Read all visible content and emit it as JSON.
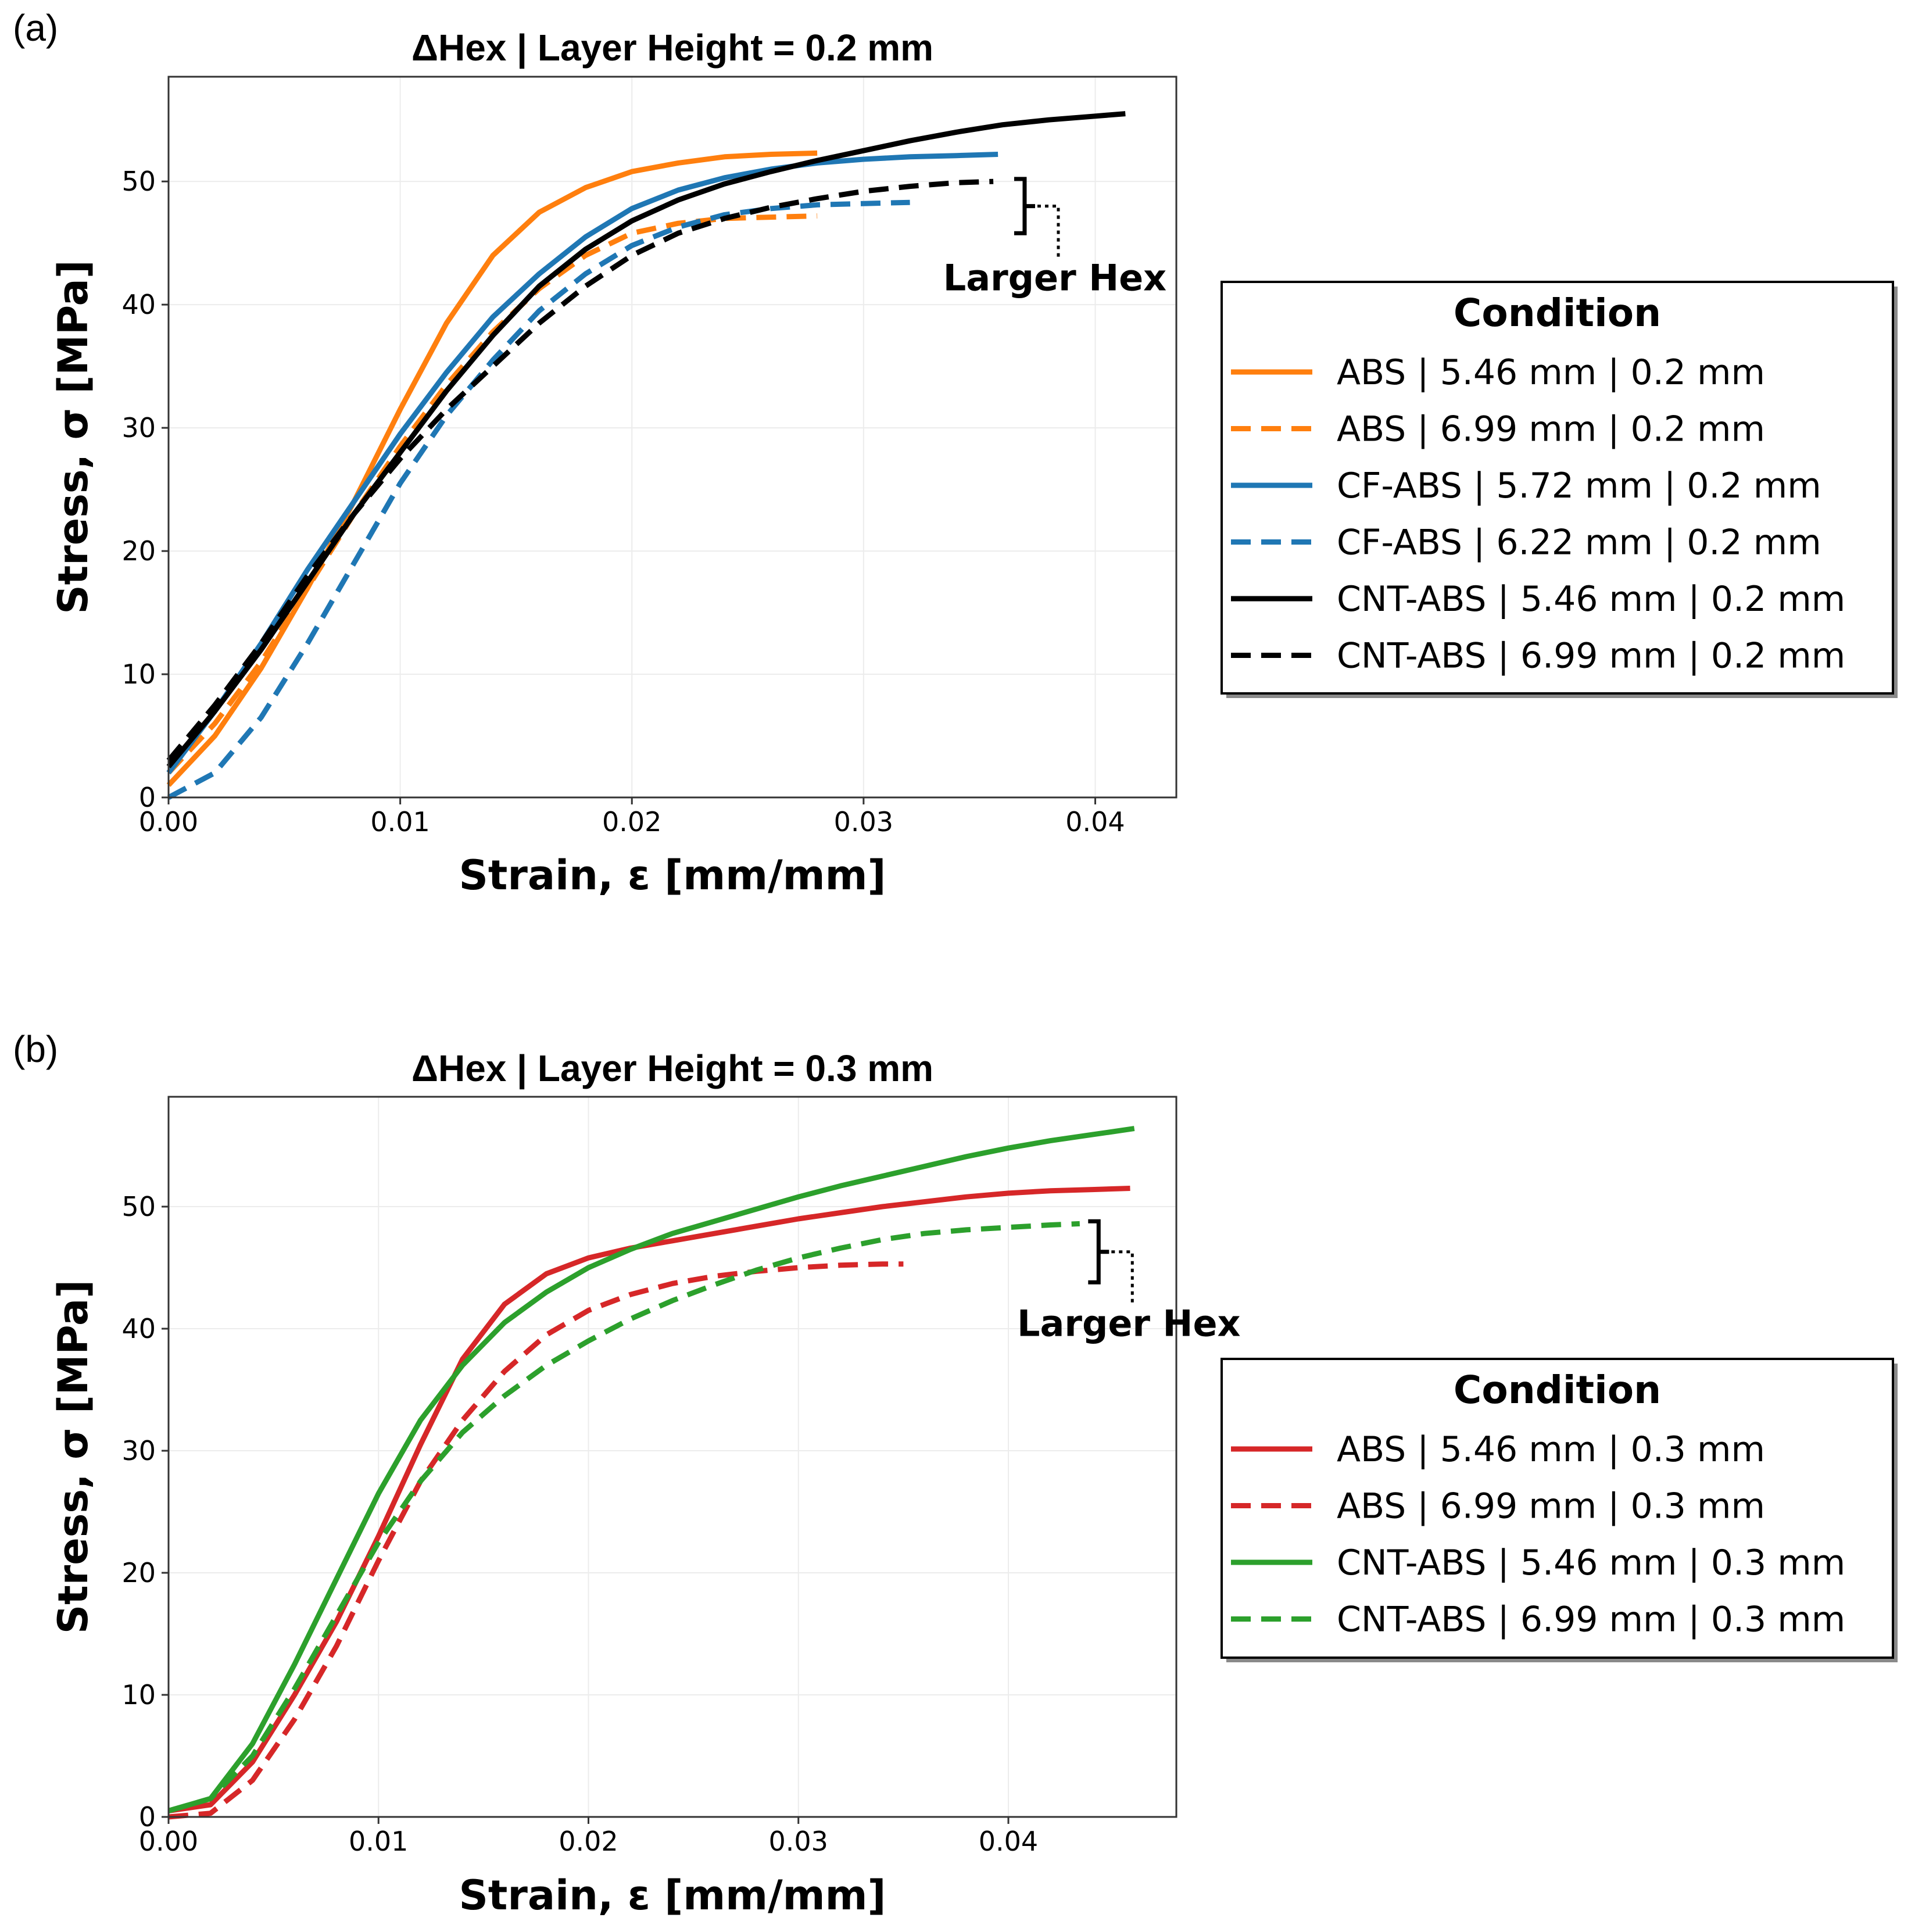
{
  "chart_data": [
    {
      "id": "a",
      "panel_label": "(a)",
      "type": "line",
      "title": "ΔHex | Layer Height = 0.2 mm",
      "xlabel": "Strain, ε [mm/mm]",
      "ylabel": "Stress, σ [MPa]",
      "xlim": [
        0.0,
        0.0435
      ],
      "ylim": [
        0,
        58.5
      ],
      "xticks": [
        0.0,
        0.01,
        0.02,
        0.03,
        0.04
      ],
      "xtick_labels": [
        "0.00",
        "0.01",
        "0.02",
        "0.03",
        "0.04"
      ],
      "yticks": [
        0,
        10,
        20,
        30,
        40,
        50
      ],
      "ytick_labels": [
        "0",
        "10",
        "20",
        "30",
        "40",
        "50"
      ],
      "grid": true,
      "annotation": {
        "text": "Larger Hex",
        "x": 0.0365,
        "y_top": 50.2,
        "y_bottom": 45.8
      },
      "legend": {
        "title": "Condition",
        "placement": "right"
      },
      "series": [
        {
          "name": "ABS | 5.46 mm | 0.2 mm",
          "color": "#ff7f0e",
          "dash": "solid",
          "x": [
            0,
            0.002,
            0.004,
            0.006,
            0.008,
            0.01,
            0.012,
            0.014,
            0.016,
            0.018,
            0.02,
            0.022,
            0.024,
            0.026,
            0.028
          ],
          "y": [
            1.0,
            5.0,
            10.5,
            17.0,
            24.0,
            31.5,
            38.5,
            44.0,
            47.5,
            49.5,
            50.8,
            51.5,
            52.0,
            52.2,
            52.3
          ]
        },
        {
          "name": "ABS | 6.99 mm | 0.2 mm",
          "color": "#ff7f0e",
          "dash": "dashed",
          "x": [
            0,
            0.002,
            0.004,
            0.006,
            0.008,
            0.01,
            0.012,
            0.014,
            0.016,
            0.018,
            0.02,
            0.022,
            0.024,
            0.026,
            0.028
          ],
          "y": [
            2.0,
            6.0,
            11.0,
            17.0,
            23.0,
            28.5,
            33.5,
            37.8,
            41.3,
            44.0,
            45.8,
            46.6,
            47.0,
            47.1,
            47.2
          ]
        },
        {
          "name": "CF-ABS | 5.72 mm | 0.2 mm",
          "color": "#1f77b4",
          "dash": "solid",
          "x": [
            0,
            0.002,
            0.004,
            0.006,
            0.008,
            0.01,
            0.012,
            0.014,
            0.016,
            0.018,
            0.02,
            0.022,
            0.024,
            0.026,
            0.028,
            0.03,
            0.032,
            0.034,
            0.0358
          ],
          "y": [
            2.0,
            7.0,
            12.5,
            18.5,
            24.0,
            29.5,
            34.5,
            39.0,
            42.5,
            45.5,
            47.8,
            49.3,
            50.3,
            51.0,
            51.5,
            51.8,
            52.0,
            52.1,
            52.2
          ]
        },
        {
          "name": "CF-ABS | 6.22 mm | 0.2 mm",
          "color": "#1f77b4",
          "dash": "dashed",
          "x": [
            0,
            0.002,
            0.004,
            0.006,
            0.008,
            0.01,
            0.012,
            0.014,
            0.016,
            0.018,
            0.02,
            0.022,
            0.024,
            0.026,
            0.028,
            0.03,
            0.032
          ],
          "y": [
            0.0,
            2.0,
            6.5,
            12.5,
            19.0,
            25.5,
            31.0,
            35.5,
            39.5,
            42.5,
            44.8,
            46.3,
            47.3,
            47.8,
            48.1,
            48.2,
            48.3
          ]
        },
        {
          "name": "CNT-ABS | 5.46 mm | 0.2 mm",
          "color": "#000000",
          "dash": "solid",
          "x": [
            0,
            0.002,
            0.004,
            0.006,
            0.008,
            0.01,
            0.012,
            0.014,
            0.016,
            0.018,
            0.02,
            0.022,
            0.024,
            0.026,
            0.028,
            0.03,
            0.032,
            0.034,
            0.036,
            0.038,
            0.04,
            0.0413
          ],
          "y": [
            2.5,
            7.0,
            12.0,
            17.5,
            23.0,
            28.0,
            33.0,
            37.5,
            41.5,
            44.5,
            46.8,
            48.5,
            49.8,
            50.8,
            51.7,
            52.5,
            53.3,
            54.0,
            54.6,
            55.0,
            55.3,
            55.5
          ]
        },
        {
          "name": "CNT-ABS | 6.99 mm | 0.2 mm",
          "color": "#000000",
          "dash": "dashed",
          "x": [
            0,
            0.002,
            0.004,
            0.006,
            0.008,
            0.01,
            0.012,
            0.014,
            0.016,
            0.018,
            0.02,
            0.022,
            0.024,
            0.026,
            0.028,
            0.03,
            0.032,
            0.034,
            0.0356
          ],
          "y": [
            3.0,
            7.5,
            12.5,
            18.0,
            23.0,
            27.5,
            31.5,
            35.0,
            38.5,
            41.5,
            44.0,
            45.8,
            47.0,
            47.9,
            48.6,
            49.2,
            49.6,
            49.9,
            50.0
          ]
        }
      ]
    },
    {
      "id": "b",
      "panel_label": "(b)",
      "type": "line",
      "title": "ΔHex | Layer Height = 0.3 mm",
      "xlabel": "Strain, ε [mm/mm]",
      "ylabel": "Stress, σ [MPa]",
      "xlim": [
        0.0,
        0.048
      ],
      "ylim": [
        0,
        59
      ],
      "xticks": [
        0.0,
        0.01,
        0.02,
        0.03,
        0.04
      ],
      "xtick_labels": [
        "0.00",
        "0.01",
        "0.02",
        "0.03",
        "0.04"
      ],
      "yticks": [
        0,
        10,
        20,
        30,
        40,
        50
      ],
      "ytick_labels": [
        "0",
        "10",
        "20",
        "30",
        "40",
        "50"
      ],
      "grid": true,
      "annotation": {
        "text": "Larger Hex",
        "x": 0.0438,
        "y_top": 48.8,
        "y_bottom": 43.8
      },
      "legend": {
        "title": "Condition",
        "placement": "right"
      },
      "series": [
        {
          "name": "ABS | 5.46 mm | 0.3 mm",
          "color": "#d62728",
          "dash": "solid",
          "x": [
            0,
            0.002,
            0.004,
            0.006,
            0.008,
            0.01,
            0.012,
            0.014,
            0.016,
            0.018,
            0.02,
            0.022,
            0.024,
            0.026,
            0.028,
            0.03,
            0.032,
            0.034,
            0.036,
            0.038,
            0.04,
            0.042,
            0.044,
            0.0458
          ],
          "y": [
            0.5,
            1.0,
            4.5,
            10.0,
            16.0,
            23.0,
            30.5,
            37.5,
            42.0,
            44.5,
            45.8,
            46.6,
            47.2,
            47.8,
            48.4,
            49.0,
            49.5,
            50.0,
            50.4,
            50.8,
            51.1,
            51.3,
            51.4,
            51.5
          ]
        },
        {
          "name": "ABS | 6.99 mm | 0.3 mm",
          "color": "#d62728",
          "dash": "dashed",
          "x": [
            0,
            0.002,
            0.004,
            0.006,
            0.008,
            0.01,
            0.012,
            0.014,
            0.016,
            0.018,
            0.02,
            0.022,
            0.024,
            0.026,
            0.028,
            0.03,
            0.032,
            0.034,
            0.035
          ],
          "y": [
            0.0,
            0.3,
            3.0,
            8.0,
            14.0,
            21.0,
            27.5,
            32.5,
            36.5,
            39.5,
            41.5,
            42.8,
            43.7,
            44.3,
            44.7,
            45.0,
            45.2,
            45.3,
            45.3
          ]
        },
        {
          "name": "CNT-ABS | 5.46 mm | 0.3 mm",
          "color": "#2ca02c",
          "dash": "solid",
          "x": [
            0,
            0.002,
            0.004,
            0.006,
            0.008,
            0.01,
            0.012,
            0.014,
            0.016,
            0.018,
            0.02,
            0.022,
            0.024,
            0.026,
            0.028,
            0.03,
            0.032,
            0.034,
            0.036,
            0.038,
            0.04,
            0.042,
            0.044,
            0.046
          ],
          "y": [
            0.5,
            1.5,
            6.0,
            12.5,
            19.5,
            26.5,
            32.5,
            37.0,
            40.5,
            43.0,
            45.0,
            46.5,
            47.8,
            48.8,
            49.8,
            50.8,
            51.7,
            52.5,
            53.3,
            54.1,
            54.8,
            55.4,
            55.9,
            56.4
          ]
        },
        {
          "name": "CNT-ABS | 6.99 mm | 0.3 mm",
          "color": "#2ca02c",
          "dash": "dashed",
          "x": [
            0,
            0.002,
            0.004,
            0.006,
            0.008,
            0.01,
            0.012,
            0.014,
            0.016,
            0.018,
            0.02,
            0.022,
            0.024,
            0.026,
            0.028,
            0.03,
            0.032,
            0.034,
            0.036,
            0.038,
            0.04,
            0.042,
            0.0434
          ],
          "y": [
            0.5,
            1.5,
            5.0,
            10.5,
            16.5,
            22.5,
            27.5,
            31.5,
            34.5,
            37.0,
            39.0,
            40.8,
            42.3,
            43.6,
            44.8,
            45.8,
            46.6,
            47.3,
            47.8,
            48.1,
            48.3,
            48.5,
            48.6
          ]
        }
      ]
    }
  ]
}
